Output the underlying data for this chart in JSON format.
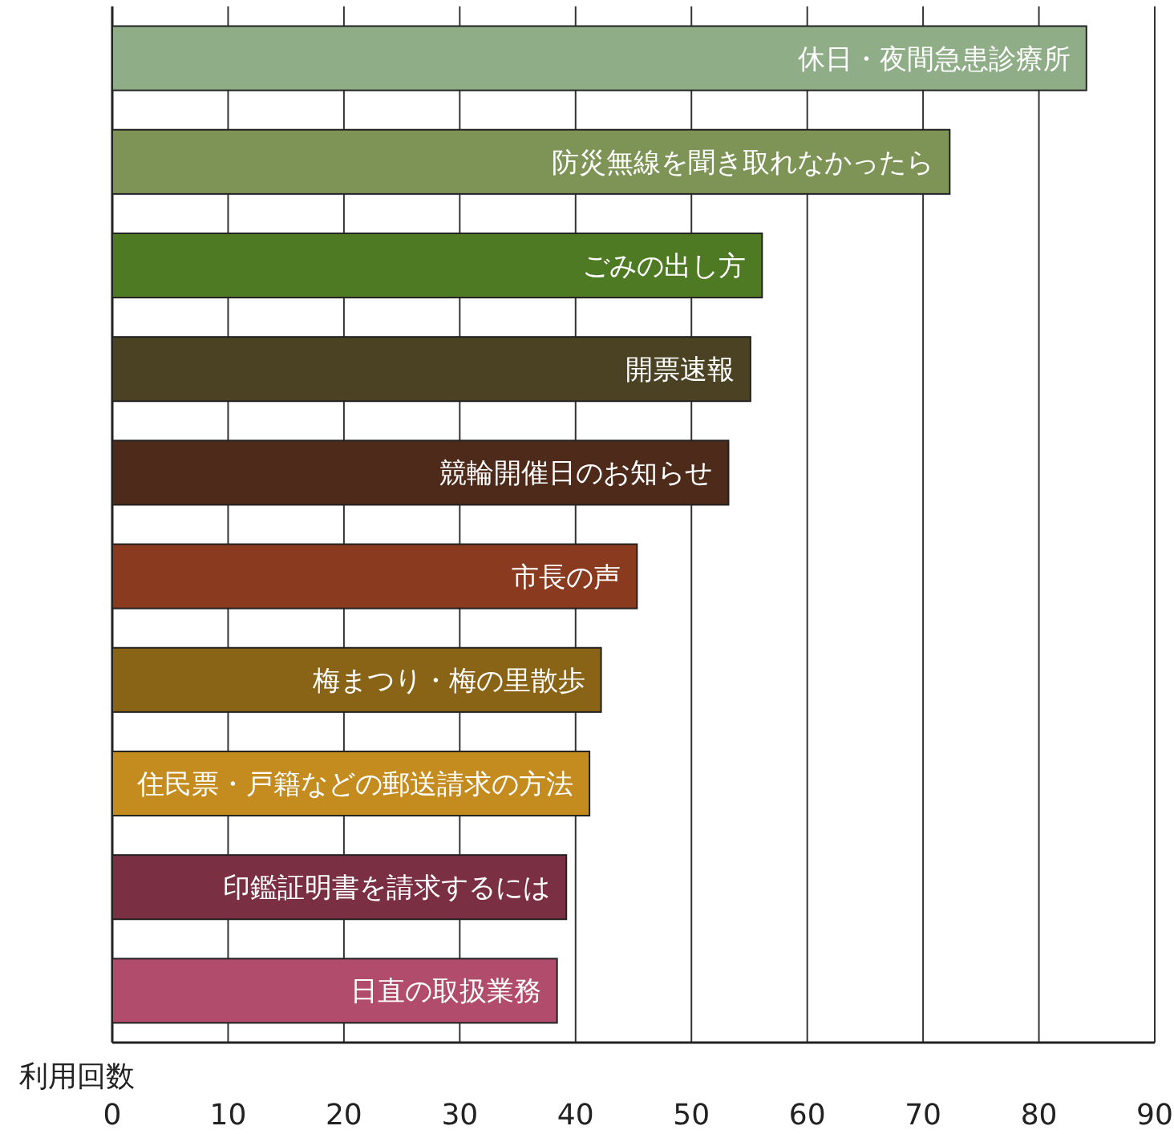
{
  "chart_data": {
    "type": "bar",
    "orientation": "horizontal",
    "xlabel": "利用回数",
    "categories": [
      "休日・夜間急患診療所",
      "防災無線を聞き取れなかったら",
      "ごみの出し方",
      "開票速報",
      "競輪開催日のお知らせ",
      "市長の声",
      "梅まつり・梅の里散歩",
      "住民票・戸籍などの郵送請求の方法",
      "印鑑証明書を請求するには",
      "日直の取扱業務"
    ],
    "values": [
      84.1,
      72.3,
      56.1,
      55.1,
      53.2,
      45.3,
      42.2,
      41.2,
      39.2,
      38.4
    ],
    "colors": [
      "#8fae88",
      "#7e9456",
      "#4f7a24",
      "#4a4222",
      "#4e2a1a",
      "#8a3a1e",
      "#8a6416",
      "#c48c1e",
      "#7a3042",
      "#b24c6c"
    ],
    "xlim": [
      0,
      90
    ],
    "xticks": [
      0,
      10,
      20,
      30,
      40,
      50,
      60,
      70,
      80,
      90
    ],
    "grid": "x"
  }
}
